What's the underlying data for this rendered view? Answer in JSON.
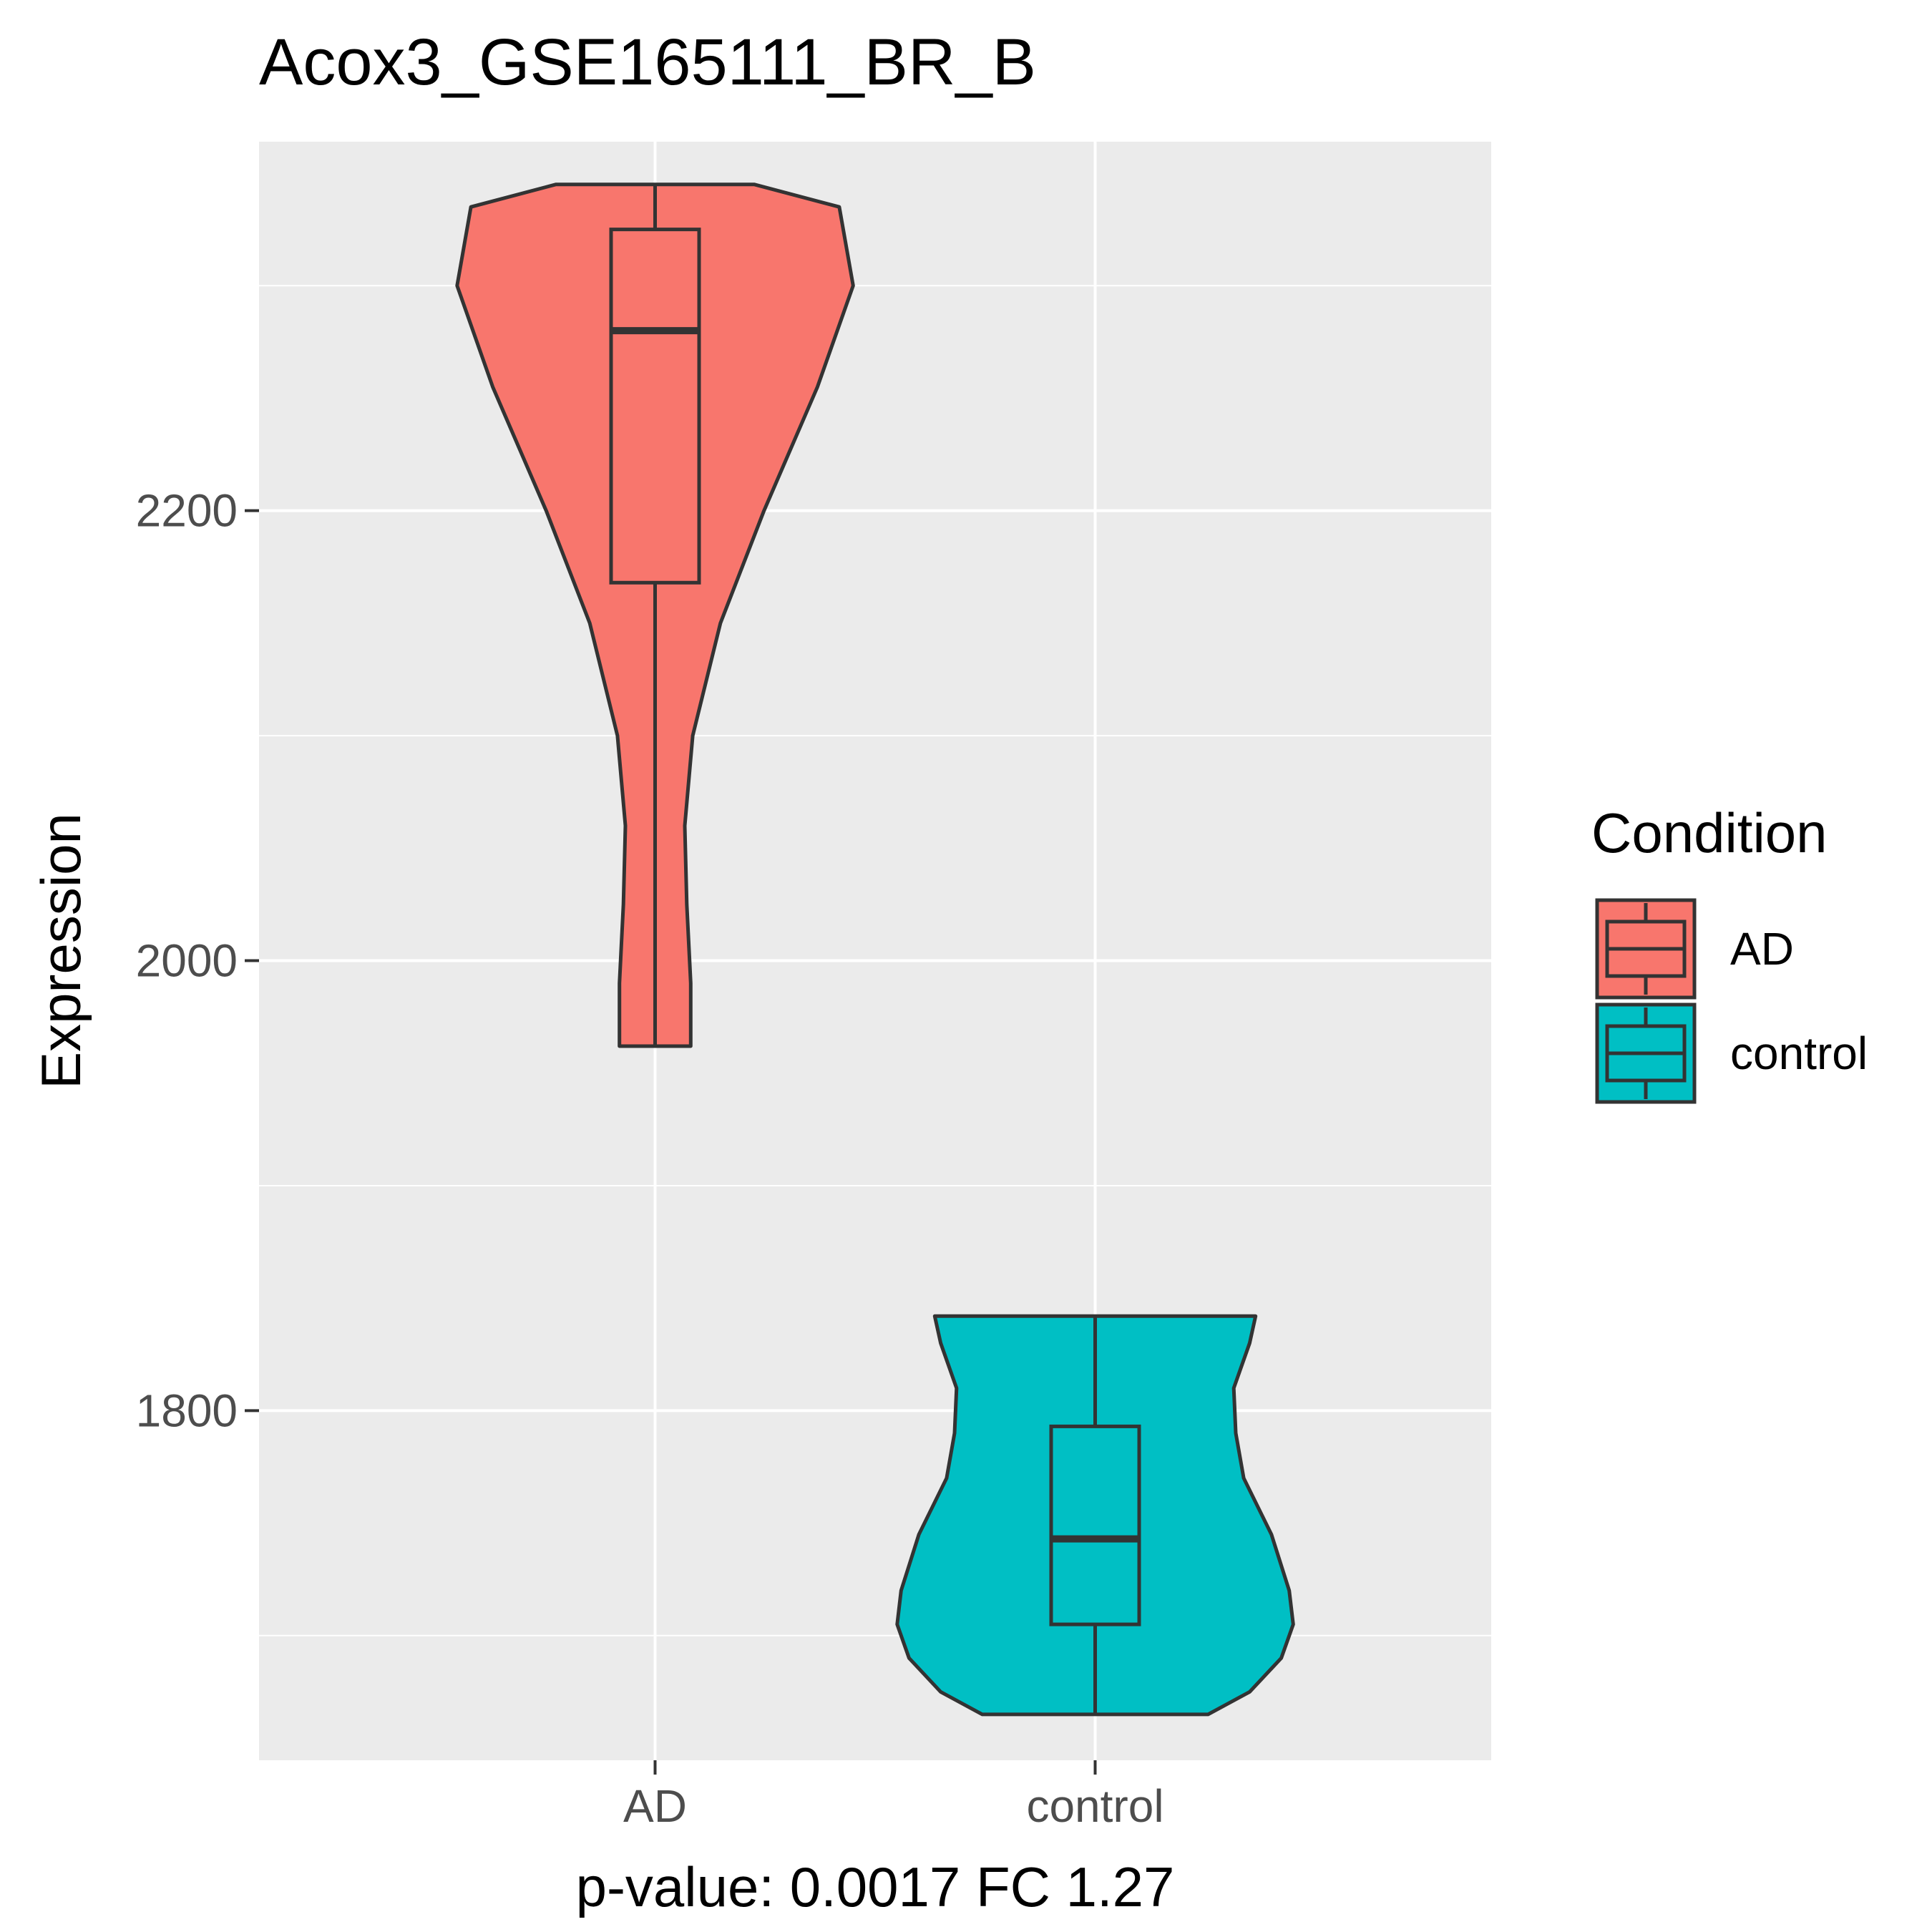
{
  "chart_data": {
    "type": "violin",
    "title": "Acox3_GSE165111_BR_B",
    "xlabel": "p-value: 0.0017 FC 1.27",
    "ylabel": "Expression",
    "ylim": [
      1644.6,
      2364.0
    ],
    "y_ticks": [
      1800,
      2000,
      2200
    ],
    "categories": [
      "AD",
      "control"
    ],
    "grid": true,
    "legend": {
      "title": "Condition",
      "position": "right",
      "entries": [
        "AD",
        "control"
      ]
    },
    "colors": {
      "AD": "#F8766D",
      "control": "#00BFC4",
      "panel": "#EBEBEB",
      "grid": "#FFFFFF",
      "outline": "#333333",
      "tick_label": "#4D4D4D",
      "axis_tick": "#333333"
    },
    "series": [
      {
        "name": "AD",
        "violin_min": 1962,
        "violin_max": 2345,
        "density_profile": [
          [
            1962,
            0.18
          ],
          [
            1990,
            0.18
          ],
          [
            2025,
            0.16
          ],
          [
            2060,
            0.15
          ],
          [
            2100,
            0.19
          ],
          [
            2150,
            0.33
          ],
          [
            2200,
            0.55
          ],
          [
            2255,
            0.82
          ],
          [
            2300,
            1.0
          ],
          [
            2335,
            0.93
          ],
          [
            2345,
            0.5
          ]
        ],
        "box": {
          "min": 1962,
          "q1": 2168,
          "median": 2280,
          "q3": 2325,
          "max": 2345
        }
      },
      {
        "name": "control",
        "violin_min": 1665,
        "violin_max": 1842,
        "density_profile": [
          [
            1665,
            0.57
          ],
          [
            1675,
            0.78
          ],
          [
            1690,
            0.94
          ],
          [
            1705,
            1.0
          ],
          [
            1720,
            0.98
          ],
          [
            1745,
            0.89
          ],
          [
            1770,
            0.75
          ],
          [
            1790,
            0.71
          ],
          [
            1810,
            0.7
          ],
          [
            1830,
            0.78
          ],
          [
            1842,
            0.81
          ]
        ],
        "box": {
          "min": 1665,
          "q1": 1705,
          "median": 1743,
          "q3": 1793,
          "max": 1842
        }
      }
    ]
  }
}
